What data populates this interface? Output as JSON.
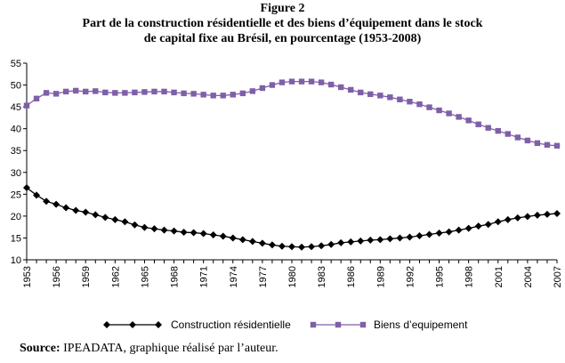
{
  "figure": {
    "number": "Figure 2",
    "title_line1": "Part de la construction résidentielle et des biens d’équipement dans le stock",
    "title_line2": "de capital fixe au Brésil, en pourcentage (1953-2008)"
  },
  "source": {
    "label": "Source:",
    "text": " IPEADATA, graphique réalisé par l’auteur."
  },
  "colors": {
    "construction": "#000000",
    "equipement": "#7f5fa8",
    "axis": "#000000"
  },
  "chart_data": {
    "type": "line",
    "title": "Part de la construction résidentielle et des biens d’équipement dans le stock de capital fixe au Brésil, en pourcentage (1953-2008)",
    "xlabel": "",
    "ylabel": "",
    "ylim": [
      10,
      55
    ],
    "yticks": [
      10,
      15,
      20,
      25,
      30,
      35,
      40,
      45,
      50,
      55
    ],
    "xtick_labels": [
      "1953",
      "1956",
      "1959",
      "1962",
      "1965",
      "1968",
      "1971",
      "1974",
      "1977",
      "1980",
      "1983",
      "1986",
      "1989",
      "1992",
      "1995",
      "1998",
      "2001",
      "2004",
      "2007"
    ],
    "grid": false,
    "legend_position": "bottom",
    "x": [
      1953,
      1954,
      1955,
      1956,
      1957,
      1958,
      1959,
      1960,
      1961,
      1962,
      1963,
      1964,
      1965,
      1966,
      1967,
      1968,
      1969,
      1970,
      1971,
      1972,
      1973,
      1974,
      1975,
      1976,
      1977,
      1978,
      1979,
      1980,
      1981,
      1982,
      1983,
      1984,
      1985,
      1986,
      1987,
      1988,
      1989,
      1990,
      1991,
      1992,
      1993,
      1994,
      1995,
      1996,
      1997,
      1998,
      1999,
      2000,
      2001,
      2002,
      2003,
      2004,
      2005,
      2006,
      2007
    ],
    "series": [
      {
        "name": "Construction résidentielle",
        "marker": "diamond",
        "values": [
          26.5,
          24.8,
          23.4,
          22.7,
          21.9,
          21.3,
          20.9,
          20.3,
          19.7,
          19.2,
          18.7,
          18.0,
          17.4,
          17.1,
          16.8,
          16.6,
          16.3,
          16.2,
          16.0,
          15.7,
          15.4,
          15.0,
          14.6,
          14.2,
          13.8,
          13.4,
          13.1,
          13.0,
          12.9,
          13.0,
          13.2,
          13.5,
          13.9,
          14.1,
          14.3,
          14.5,
          14.6,
          14.8,
          15.0,
          15.2,
          15.5,
          15.8,
          16.1,
          16.4,
          16.8,
          17.2,
          17.7,
          18.1,
          18.7,
          19.2,
          19.6,
          19.9,
          20.2,
          20.4,
          20.6
        ]
      },
      {
        "name": "Biens d’equipement",
        "marker": "square",
        "values": [
          45.3,
          46.9,
          48.2,
          48.0,
          48.5,
          48.7,
          48.5,
          48.6,
          48.3,
          48.2,
          48.2,
          48.3,
          48.4,
          48.5,
          48.5,
          48.3,
          48.1,
          48.0,
          47.8,
          47.6,
          47.6,
          47.8,
          48.1,
          48.6,
          49.3,
          50.0,
          50.6,
          50.8,
          50.8,
          50.8,
          50.6,
          50.1,
          49.5,
          48.9,
          48.3,
          47.9,
          47.6,
          47.2,
          46.7,
          46.2,
          45.6,
          44.9,
          44.2,
          43.5,
          42.7,
          41.9,
          41.0,
          40.2,
          39.5,
          38.8,
          38.0,
          37.3,
          36.7,
          36.3,
          36.1
        ]
      }
    ]
  }
}
